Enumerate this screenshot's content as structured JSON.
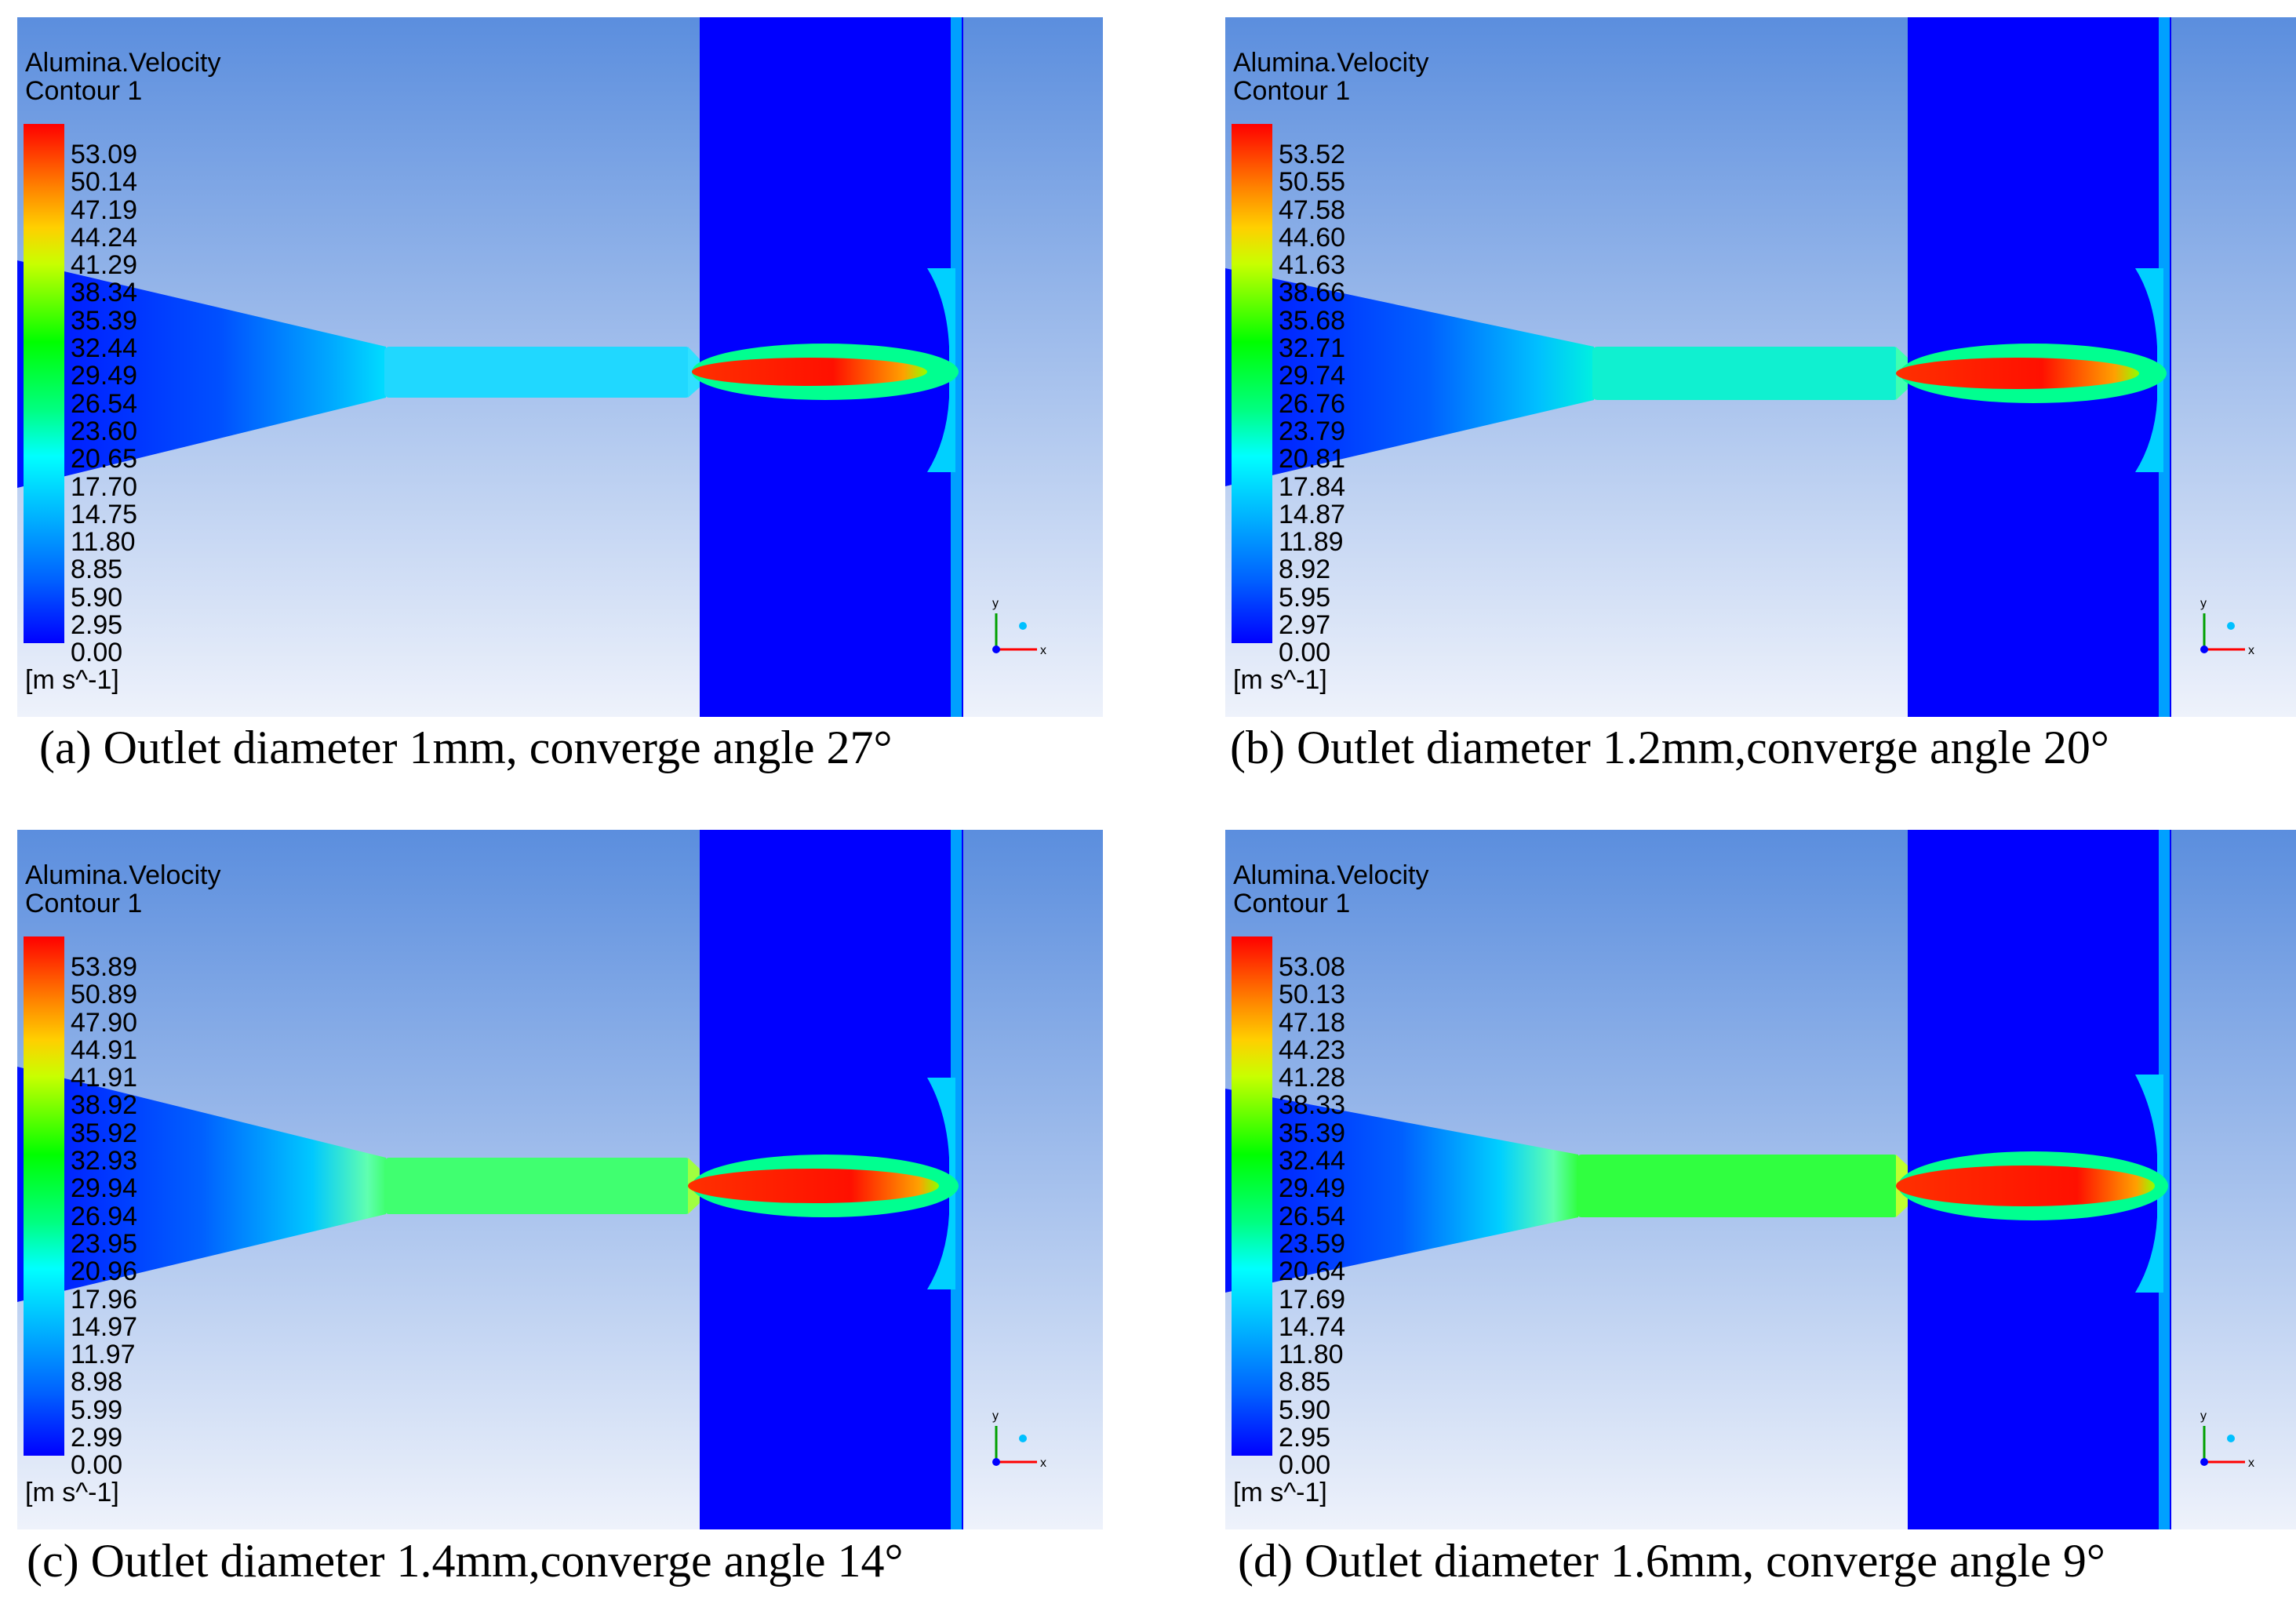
{
  "panels": [
    {
      "title_line1": "Alumina.Velocity",
      "title_line2": "Contour 1",
      "legend": [
        "53.09",
        "50.14",
        "47.19",
        "44.24",
        "41.29",
        "38.34",
        "35.39",
        "32.44",
        "29.49",
        "26.54",
        "23.60",
        "20.65",
        "17.70",
        "14.75",
        "11.80",
        "8.85",
        "5.90",
        "2.95",
        "0.00"
      ],
      "units": "[m s^-1]",
      "caption": "(a) Outlet diameter 1mm, converge angle 27°"
    },
    {
      "title_line1": "Alumina.Velocity",
      "title_line2": "Contour 1",
      "legend": [
        "53.52",
        "50.55",
        "47.58",
        "44.60",
        "41.63",
        "38.66",
        "35.68",
        "32.71",
        "29.74",
        "26.76",
        "23.79",
        "20.81",
        "17.84",
        "14.87",
        "11.89",
        "8.92",
        "5.95",
        "2.97",
        "0.00"
      ],
      "units": "[m s^-1]",
      "caption": "(b) Outlet diameter 1.2mm,converge angle 20°"
    },
    {
      "title_line1": "Alumina.Velocity",
      "title_line2": "Contour 1",
      "legend": [
        "53.89",
        "50.89",
        "47.90",
        "44.91",
        "41.91",
        "38.92",
        "35.92",
        "32.93",
        "29.94",
        "26.94",
        "23.95",
        "20.96",
        "17.96",
        "14.97",
        "11.97",
        "8.98",
        "5.99",
        "2.99",
        "0.00"
      ],
      "units": "[m s^-1]",
      "caption": "(c) Outlet diameter 1.4mm,converge angle 14°"
    },
    {
      "title_line1": "Alumina.Velocity",
      "title_line2": "Contour 1",
      "legend": [
        "53.08",
        "50.13",
        "47.18",
        "44.23",
        "41.28",
        "38.33",
        "35.39",
        "32.44",
        "29.49",
        "26.54",
        "23.59",
        "20.64",
        "17.69",
        "14.74",
        "11.80",
        "8.85",
        "5.90",
        "2.95",
        "0.00"
      ],
      "units": "[m s^-1]",
      "caption": "(d) Outlet diameter 1.6mm, converge angle 9°"
    }
  ],
  "axis_triad": {
    "y_label": "y",
    "x_label": "x"
  },
  "colors": {
    "background_top": "#5b8ede",
    "background_bottom": "#eef2fb",
    "domain_blue": "#0000ff",
    "jet_core": "#ff1a00"
  }
}
